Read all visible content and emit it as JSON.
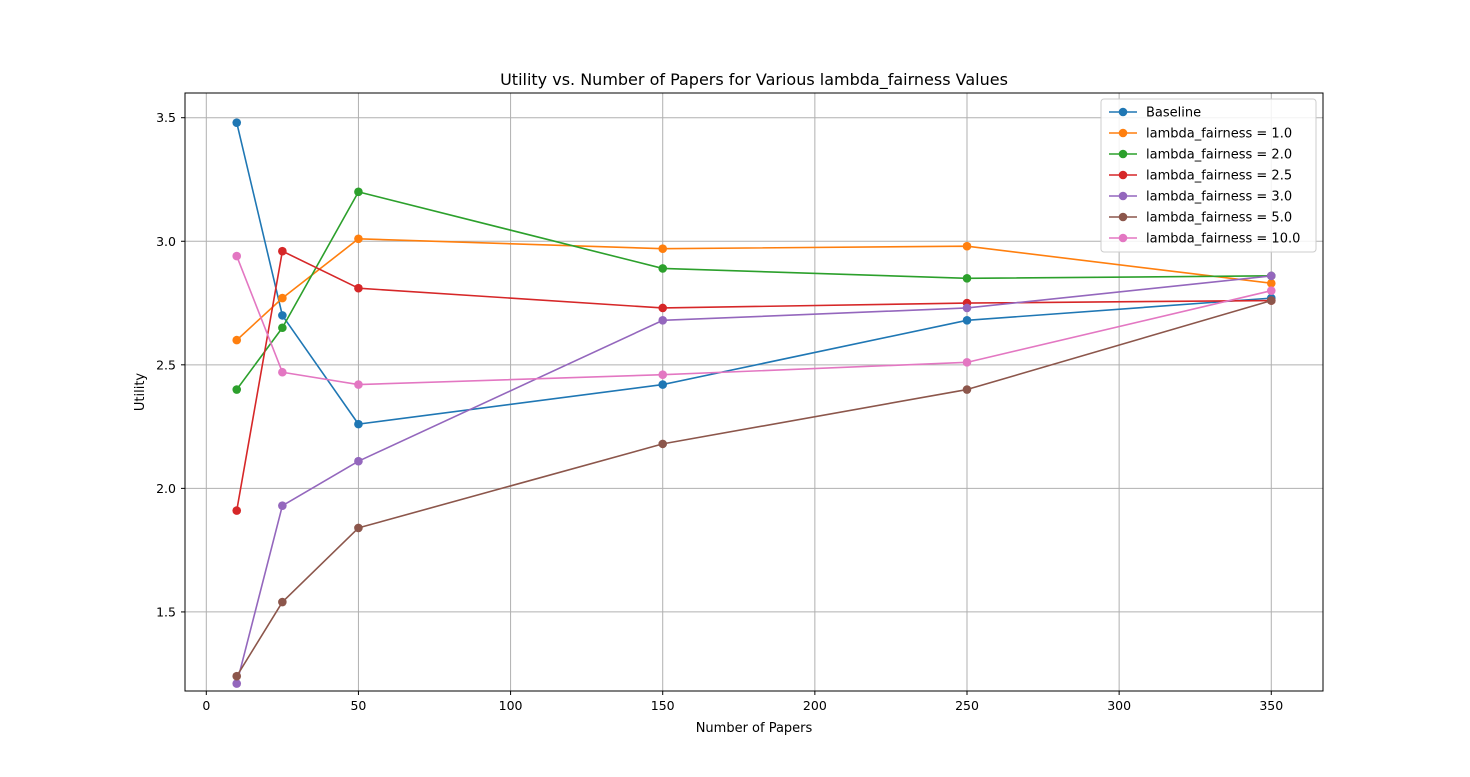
{
  "chart_data": {
    "type": "line",
    "title": "Utility vs. Number of Papers for Various lambda_fairness Values",
    "xlabel": "Number of Papers",
    "ylabel": "Utility",
    "xlim": [
      -7.0,
      367.0
    ],
    "ylim": [
      1.18,
      3.6
    ],
    "xticks": [
      0,
      50,
      100,
      150,
      200,
      250,
      300,
      350
    ],
    "yticks": [
      1.5,
      2.0,
      2.5,
      3.0,
      3.5
    ],
    "xtick_labels": [
      "0",
      "50",
      "100",
      "150",
      "200",
      "250",
      "300",
      "350"
    ],
    "ytick_labels": [
      "1.5",
      "2.0",
      "2.5",
      "3.0",
      "3.5"
    ],
    "grid": true,
    "legend_position": "top-right",
    "x": [
      10,
      25,
      50,
      150,
      250,
      350
    ],
    "series": [
      {
        "name": "Baseline",
        "color": "#1f77b4",
        "values": [
          3.48,
          2.7,
          2.26,
          2.42,
          2.68,
          2.77
        ]
      },
      {
        "name": "lambda_fairness = 1.0",
        "color": "#ff7f0e",
        "values": [
          2.6,
          2.77,
          3.01,
          2.97,
          2.98,
          2.83
        ]
      },
      {
        "name": "lambda_fairness = 2.0",
        "color": "#2ca02c",
        "values": [
          2.4,
          2.65,
          3.2,
          2.89,
          2.85,
          2.86
        ]
      },
      {
        "name": "lambda_fairness = 2.5",
        "color": "#d62728",
        "values": [
          1.91,
          2.96,
          2.81,
          2.73,
          2.75,
          2.76
        ]
      },
      {
        "name": "lambda_fairness = 3.0",
        "color": "#9467bd",
        "values": [
          1.21,
          1.93,
          2.11,
          2.68,
          2.73,
          2.86
        ]
      },
      {
        "name": "lambda_fairness = 5.0",
        "color": "#8c564b",
        "values": [
          1.24,
          1.54,
          1.84,
          2.18,
          2.4,
          2.76
        ]
      },
      {
        "name": "lambda_fairness = 10.0",
        "color": "#e377c2",
        "values": [
          2.94,
          2.47,
          2.42,
          2.46,
          2.51,
          2.8
        ]
      }
    ]
  }
}
